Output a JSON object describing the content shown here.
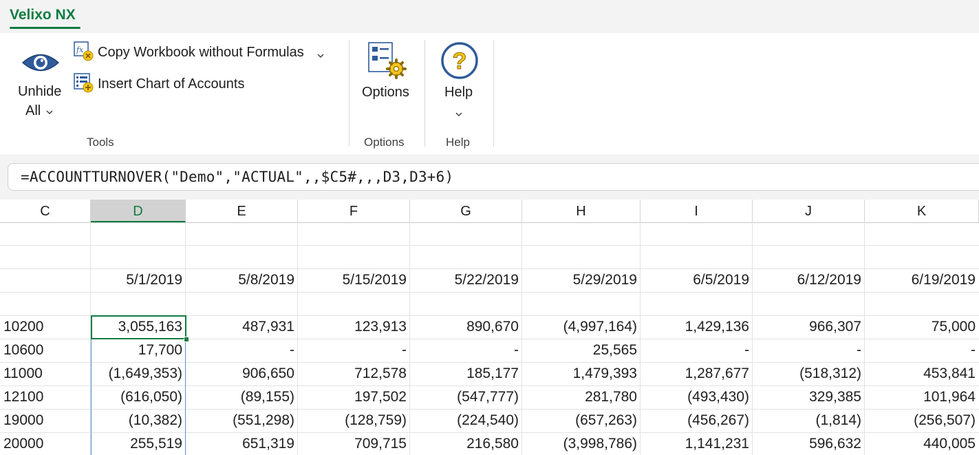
{
  "ribbon": {
    "active_tab": "Velixo NX",
    "unhide_all": {
      "line1": "Unhide",
      "line2": "All"
    },
    "copy_workbook_label": "Copy Workbook without Formulas",
    "insert_coa_label": "Insert Chart of Accounts",
    "tools_group": "Tools",
    "options_button": "Options",
    "options_group": "Options",
    "help_button": "Help",
    "help_group": "Help"
  },
  "formula_bar": {
    "formula": "=ACCOUNTTURNOVER(\"Demo\",\"ACTUAL\",,$C5#,,,D3,D3+6)"
  },
  "sheet": {
    "columns": [
      "C",
      "D",
      "E",
      "F",
      "G",
      "H",
      "I",
      "J",
      "K"
    ],
    "selected_column": "D",
    "dates": [
      "5/1/2019",
      "5/8/2019",
      "5/15/2019",
      "5/22/2019",
      "5/29/2019",
      "6/5/2019",
      "6/12/2019",
      "6/19/2019"
    ],
    "rows": [
      {
        "account": "10200",
        "values": [
          "3,055,163",
          "487,931",
          "123,913",
          "890,670",
          "(4,997,164)",
          "1,429,136",
          "966,307",
          "75,000"
        ]
      },
      {
        "account": "10600",
        "values": [
          "17,700",
          "-",
          "-",
          "-",
          "25,565",
          "-",
          "-",
          "-"
        ]
      },
      {
        "account": "11000",
        "values": [
          "(1,649,353)",
          "906,650",
          "712,578",
          "185,177",
          "1,479,393",
          "1,287,677",
          "(518,312)",
          "453,841"
        ]
      },
      {
        "account": "12100",
        "values": [
          "(616,050)",
          "(89,155)",
          "197,502",
          "(547,777)",
          "281,780",
          "(493,430)",
          "329,385",
          "101,964"
        ]
      },
      {
        "account": "19000",
        "values": [
          "(10,382)",
          "(551,298)",
          "(128,759)",
          "(224,540)",
          "(657,263)",
          "(456,267)",
          "(1,814)",
          "(256,507)"
        ]
      },
      {
        "account": "20000",
        "values": [
          "255,519",
          "651,319",
          "709,715",
          "216,580",
          "(3,998,786)",
          "1,141,231",
          "596,632",
          "440,005"
        ]
      }
    ]
  },
  "icons": {
    "unhide": "eye-icon",
    "copy_workbook": "formula-remove-icon",
    "insert_coa": "list-add-icon",
    "options": "settings-gear-icon",
    "help": "question-mark-icon"
  },
  "colors": {
    "accent_green": "#107c41",
    "icon_blue": "#2f5b9a",
    "help_yellow": "#f5c518"
  }
}
